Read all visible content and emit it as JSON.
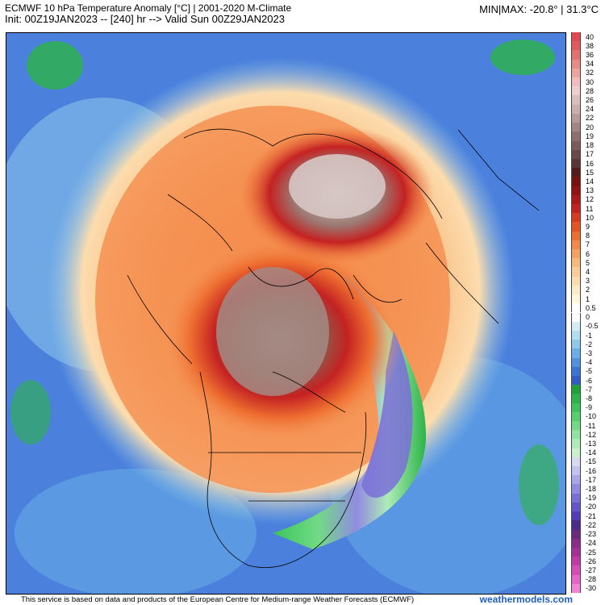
{
  "header": {
    "title": "ECMWF 10 hPa Temperature Anomaly [°C] | 2001-2020 M-Climate",
    "init_line": "Init: 00Z19JAN2023 -- [240] hr --> Valid Sun 00Z29JAN2023",
    "minmax": "MIN|MAX: -20.8° | 31.3°C"
  },
  "legend": {
    "labels": [
      "40",
      "38",
      "36",
      "34",
      "32",
      "30",
      "28",
      "26",
      "24",
      "22",
      "20",
      "19",
      "18",
      "17",
      "16",
      "15",
      "14",
      "13",
      "12",
      "11",
      "10",
      "9",
      "8",
      "7",
      "6",
      "5",
      "4",
      "3",
      "2",
      "1",
      "0.5",
      "0",
      "-0.5",
      "-1",
      "-2",
      "-3",
      "-4",
      "-5",
      "-6",
      "-7",
      "-8",
      "-9",
      "-10",
      "-11",
      "-12",
      "-13",
      "-14",
      "-15",
      "-16",
      "-17",
      "-18",
      "-19",
      "-20",
      "-21",
      "-22",
      "-23",
      "-24",
      "-25",
      "-26",
      "-27",
      "-28",
      "-30"
    ],
    "colors": [
      "#e0494f",
      "#e2595e",
      "#e6706d",
      "#ea8a86",
      "#eea3a0",
      "#f1bcba",
      "#efcfce",
      "#d9bfbc",
      "#c9aeab",
      "#b89b98",
      "#a38582",
      "#8e6f6c",
      "#7c5b58",
      "#6b4847",
      "#5b3635",
      "#551a1a",
      "#7a1010",
      "#931212",
      "#ad1818",
      "#c42222",
      "#d83a1e",
      "#e45322",
      "#ee6e30",
      "#f48848",
      "#f6a062",
      "#f8b87c",
      "#fbcc97",
      "#fcdcae",
      "#fdeac8",
      "#fff6de",
      "#ffffff",
      "#ffffff",
      "#d4ecf5",
      "#b3ddf0",
      "#8fc8ec",
      "#6aaee7",
      "#4f92e0",
      "#3b76d6",
      "#2f5cc6",
      "#1ea33a",
      "#2cb448",
      "#3cc45a",
      "#56d06e",
      "#72da86",
      "#90e39e",
      "#aeebb7",
      "#c8f1cc",
      "#d8d9f4",
      "#c3c2f0",
      "#aaa6ea",
      "#918be2",
      "#7a6fd8",
      "#6555cb",
      "#523cb9",
      "#4a2c8c",
      "#6a2b7d",
      "#8a2c89",
      "#a63095",
      "#c23aa5",
      "#d84bb6",
      "#e864c6",
      "#f283d6"
    ]
  },
  "footer": {
    "credit": "This service is based on data and products of the European Centre for Medium-range Weather Forecasts (ECMWF)",
    "brand": "weathermodels.com"
  }
}
